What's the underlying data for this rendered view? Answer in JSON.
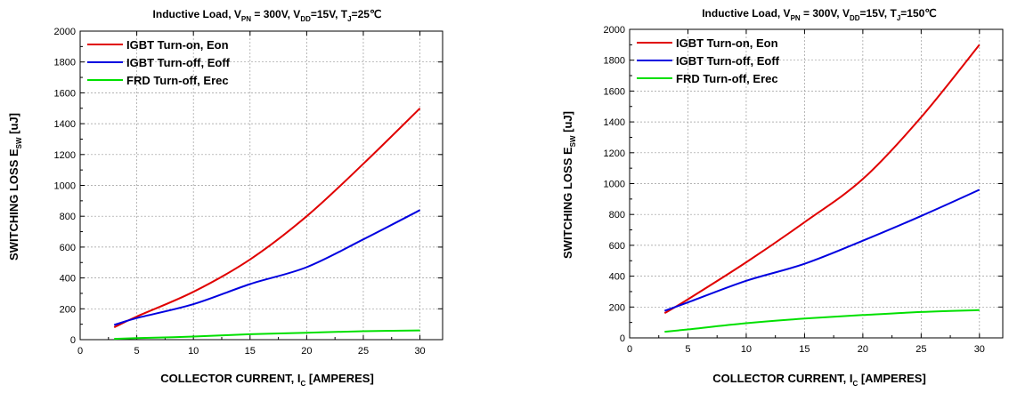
{
  "chart_data": [
    {
      "type": "line",
      "title": {
        "prefix": "Inductive Load, V",
        "sub1": "PN",
        "mid1": " = 300V, V",
        "sub2": "DD",
        "mid2": "=15V, T",
        "sub3": "J",
        "suffix": "=25℃"
      },
      "xlabel": {
        "main": "COLLECTOR CURRENT, I",
        "sub": "C",
        "rest": " [AMPERES]"
      },
      "ylabel": {
        "main": "SWITCHING LOSS E",
        "sub": "SW",
        "rest": " [uJ]"
      },
      "xlim": [
        0,
        32
      ],
      "ylim": [
        0,
        2000
      ],
      "xticks": [
        "0",
        "5",
        "10",
        "15",
        "20",
        "25",
        "30"
      ],
      "yticks": [
        "0",
        "200",
        "400",
        "600",
        "800",
        "1000",
        "1200",
        "1400",
        "1600",
        "1800",
        "2000"
      ],
      "grid": true,
      "legend_position": "top-left",
      "series": [
        {
          "name": "IGBT Turn-on, Eon",
          "color": "#e00000",
          "x": [
            3,
            5,
            10,
            15,
            20,
            25,
            30
          ],
          "y": [
            80,
            150,
            310,
            520,
            800,
            1140,
            1500
          ]
        },
        {
          "name": "IGBT Turn-off, Eoff",
          "color": "#0000e0",
          "x": [
            3,
            5,
            10,
            15,
            20,
            25,
            30
          ],
          "y": [
            95,
            140,
            230,
            360,
            470,
            650,
            840
          ]
        },
        {
          "name": "FRD Turn-off, Erec",
          "color": "#00e000",
          "x": [
            3,
            5,
            10,
            15,
            20,
            25,
            30
          ],
          "y": [
            5,
            10,
            20,
            35,
            45,
            55,
            60
          ]
        }
      ]
    },
    {
      "type": "line",
      "title": {
        "prefix": "Inductive Load, V",
        "sub1": "PN",
        "mid1": " = 300V, V",
        "sub2": "DD",
        "mid2": "=15V, T",
        "sub3": "J",
        "suffix": "=150℃"
      },
      "xlabel": {
        "main": "COLLECTOR CURRENT, I",
        "sub": "C",
        "rest": " [AMPERES]"
      },
      "ylabel": {
        "main": "SWITCHING LOSS E",
        "sub": "SW",
        "rest": " [uJ]"
      },
      "xlim": [
        0,
        32
      ],
      "ylim": [
        0,
        2000
      ],
      "xticks": [
        "0",
        "5",
        "10",
        "15",
        "20",
        "25",
        "30"
      ],
      "yticks": [
        "0",
        "200",
        "400",
        "600",
        "800",
        "1000",
        "1200",
        "1400",
        "1600",
        "1800",
        "2000"
      ],
      "grid": true,
      "legend_position": "top-left",
      "series": [
        {
          "name": "IGBT Turn-on, Eon",
          "color": "#e00000",
          "x": [
            3,
            5,
            10,
            15,
            20,
            25,
            30
          ],
          "y": [
            160,
            250,
            490,
            750,
            1030,
            1430,
            1900
          ]
        },
        {
          "name": "IGBT Turn-off, Eoff",
          "color": "#0000e0",
          "x": [
            3,
            5,
            10,
            15,
            20,
            25,
            30
          ],
          "y": [
            175,
            230,
            370,
            480,
            630,
            790,
            960
          ]
        },
        {
          "name": "FRD Turn-off, Erec",
          "color": "#00e000",
          "x": [
            3,
            5,
            10,
            15,
            20,
            25,
            30
          ],
          "y": [
            40,
            55,
            95,
            125,
            148,
            168,
            180
          ]
        }
      ]
    }
  ]
}
